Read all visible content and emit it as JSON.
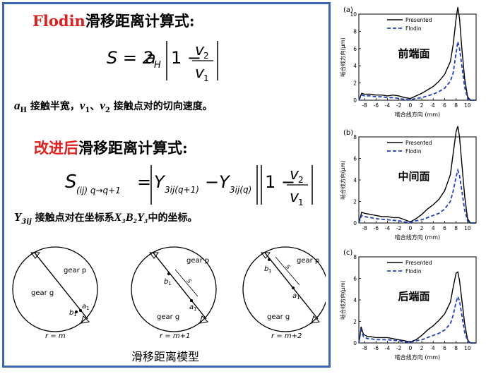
{
  "left": {
    "flodin_heading": {
      "red": "Flodin",
      "black": "滑移距离计算式:"
    },
    "flodin_formula": {
      "lhs": "S = 2",
      "a": "a",
      "a_sub": "H",
      "one_minus": "1 −",
      "num": "v",
      "num_sub": "2",
      "den": "v",
      "den_sub": "1"
    },
    "flodin_desc": {
      "aH": "a",
      "aH_sub": "H",
      "t1": " 接触半宽，",
      "v1": "v",
      "v1_sub": "1",
      "sep": "、",
      "v2": "v",
      "v2_sub": "2",
      "t2": " 接触点对的切向速度。"
    },
    "improved_heading": {
      "red": "改进后",
      "black": "滑移距离计算式:"
    },
    "improved_formula": {
      "S": "S",
      "S_sub": "(ij) q→q+1",
      "eq": "=",
      "Y1": "Y",
      "Y1_sub": "3ij(q+1)",
      "minus": "−",
      "Y2": "Y",
      "Y2_sub": "3ij(q)",
      "one_minus": "1 −",
      "num": "v",
      "num_sub": "2",
      "den": "v",
      "den_sub": "1"
    },
    "improved_desc": {
      "Y": "Y",
      "Y_sub": "3ij",
      "t1": " 接触点对在坐标系",
      "coord": "X₃B₂Y₃",
      "t2": "中的坐标。"
    },
    "models": [
      {
        "gear_p": "gear p",
        "gear_g": "gear g",
        "a": "a",
        "a_sub": "1",
        "b": "b",
        "b_sub": "1",
        "r": "r = m"
      },
      {
        "gear_p": "gear p",
        "gear_g": "gear g",
        "a": "a",
        "a_sub": "1",
        "b": "b",
        "b_sub": "1",
        "s": "S",
        "r": "r = m+1"
      },
      {
        "gear_p": "gear p",
        "gear_g": "gear g",
        "a": "a",
        "a_sub": "1",
        "b": "b",
        "b_sub": "1",
        "s": "S",
        "r": "r = m+2"
      }
    ],
    "caption": "滑移距离模型"
  },
  "chart_data": [
    {
      "type": "line",
      "panel": "(a)",
      "annotation": "前端面",
      "xlabel": "啮合线方向 (mm)",
      "ylabel": "啮合线方向(μm)",
      "xlim": [
        -9,
        11.5
      ],
      "ylim": [
        0,
        10
      ],
      "xticks": [
        -8,
        -6,
        -4,
        -2,
        0,
        2,
        4,
        6,
        8,
        10
      ],
      "yticks": [
        0,
        2,
        4,
        6,
        8,
        10
      ],
      "series": [
        {
          "name": "Presented",
          "color": "#000000",
          "dash": "solid",
          "x": [
            -9,
            -8.5,
            -8,
            -7,
            -6,
            -5,
            -4,
            -3,
            -2,
            -1,
            0,
            1,
            2,
            3,
            4,
            5,
            6,
            7,
            7.5,
            8,
            8.3,
            8.6,
            9,
            9.5,
            10,
            10.5,
            11.5
          ],
          "y": [
            0,
            0.8,
            0.7,
            0.7,
            0.6,
            0.6,
            0.5,
            0.6,
            0.5,
            0.3,
            0.2,
            0.5,
            0.8,
            1.2,
            1.6,
            2.2,
            3.0,
            4.5,
            6.5,
            9.5,
            10.8,
            9.5,
            6.0,
            2.5,
            0.4,
            0,
            0
          ]
        },
        {
          "name": "Flodin",
          "color": "#1f3fbf",
          "dash": "dashed",
          "x": [
            -9,
            -8.5,
            -8,
            -7,
            -6,
            -5,
            -4,
            -3,
            -2,
            -1,
            0,
            1,
            2,
            3,
            4,
            5,
            6,
            7,
            7.5,
            8,
            8.3,
            8.6,
            9,
            9.5,
            10,
            10.5,
            11.5
          ],
          "y": [
            0,
            0.6,
            0.5,
            0.5,
            0.4,
            0.4,
            0.3,
            0.3,
            0.2,
            0.1,
            0.05,
            0.2,
            0.3,
            0.5,
            0.7,
            1.0,
            1.4,
            2.2,
            3.2,
            5.5,
            6.8,
            6.0,
            4.0,
            1.5,
            0.2,
            0,
            0
          ]
        }
      ]
    },
    {
      "type": "line",
      "panel": "(b)",
      "annotation": "中间面",
      "xlabel": "啮合线方向 (mm)",
      "ylabel": "啮合线方向(μm)",
      "xlim": [
        -9,
        11.5
      ],
      "ylim": [
        0,
        8
      ],
      "xticks": [
        -8,
        -6,
        -4,
        -2,
        0,
        2,
        4,
        6,
        8,
        10
      ],
      "yticks": [
        0,
        2,
        4,
        6,
        8
      ],
      "series": [
        {
          "name": "Presented",
          "color": "#000000",
          "dash": "solid",
          "x": [
            -9,
            -8.5,
            -8,
            -7,
            -6,
            -5,
            -4,
            -3,
            -2,
            -1,
            0,
            1,
            2,
            3,
            4,
            5,
            6,
            7,
            7.5,
            8,
            8.3,
            8.6,
            9,
            9.5,
            10,
            10.5,
            11.5
          ],
          "y": [
            0,
            1.0,
            0.9,
            0.8,
            0.7,
            0.6,
            0.6,
            0.5,
            0.5,
            0.3,
            0.1,
            0.4,
            0.8,
            1.3,
            1.7,
            2.2,
            3.0,
            4.5,
            6.5,
            8.5,
            9.0,
            8.0,
            5.5,
            2.5,
            0.4,
            0,
            0
          ]
        },
        {
          "name": "Flodin",
          "color": "#1f3fbf",
          "dash": "dashed",
          "x": [
            -9,
            -8.5,
            -8,
            -7,
            -6,
            -5,
            -4,
            -3,
            -2,
            -1,
            0,
            1,
            2,
            3,
            4,
            5,
            6,
            7,
            7.5,
            8,
            8.3,
            8.6,
            9,
            9.5,
            10,
            10.5,
            11.5
          ],
          "y": [
            0,
            0.7,
            0.6,
            0.5,
            0.4,
            0.35,
            0.3,
            0.25,
            0.2,
            0.1,
            0.05,
            0.2,
            0.3,
            0.5,
            0.7,
            0.9,
            1.3,
            2.0,
            3.0,
            4.3,
            4.9,
            4.4,
            3.0,
            1.2,
            0.2,
            0,
            0
          ]
        }
      ]
    },
    {
      "type": "line",
      "panel": "(c)",
      "annotation": "后端面",
      "xlabel": "啮合线方向 (mm)",
      "ylabel": "啮合线方向(μm)",
      "xlim": [
        -9,
        11.5
      ],
      "ylim": [
        0,
        8
      ],
      "xticks": [
        -8,
        -6,
        -4,
        -2,
        0,
        2,
        4,
        6,
        8,
        10
      ],
      "yticks": [
        0,
        2,
        4,
        6,
        8
      ],
      "series": [
        {
          "name": "Presented",
          "color": "#000000",
          "dash": "solid",
          "x": [
            -9,
            -8.6,
            -8.2,
            -7.5,
            -7,
            -6,
            -5,
            -4,
            -3,
            -2,
            -1,
            0,
            1,
            2,
            3,
            4,
            5,
            6,
            7,
            7.5,
            8,
            8.3,
            8.6,
            9,
            9.5,
            10,
            10.5,
            11.5
          ],
          "y": [
            0,
            1.5,
            0.8,
            0.6,
            0.6,
            0.5,
            0.5,
            0.5,
            0.4,
            0.3,
            0.2,
            0.1,
            0.3,
            0.7,
            1.2,
            1.6,
            2.1,
            2.7,
            3.8,
            5.2,
            6.5,
            6.6,
            5.8,
            4.0,
            1.8,
            0.3,
            0,
            0
          ]
        },
        {
          "name": "Flodin",
          "color": "#1f3fbf",
          "dash": "dashed",
          "x": [
            -9,
            -8.6,
            -8.2,
            -7.5,
            -7,
            -6,
            -5,
            -4,
            -3,
            -2,
            -1,
            0,
            1,
            2,
            3,
            4,
            5,
            6,
            7,
            7.5,
            8,
            8.3,
            8.6,
            9,
            9.5,
            10,
            10.5,
            11.5
          ],
          "y": [
            0,
            1.2,
            0.6,
            0.4,
            0.4,
            0.3,
            0.3,
            0.3,
            0.25,
            0.2,
            0.1,
            0.05,
            0.2,
            0.3,
            0.5,
            0.7,
            0.9,
            1.2,
            1.8,
            2.6,
            3.8,
            4.3,
            3.9,
            2.6,
            1.0,
            0.2,
            0,
            0
          ]
        }
      ]
    }
  ]
}
